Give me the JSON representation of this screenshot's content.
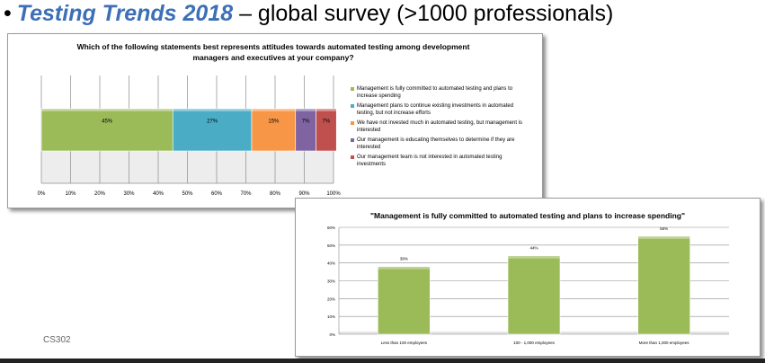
{
  "slide": {
    "bullet": "•",
    "title_emphasis": "Testing Trends 2018",
    "title_rest": " – global survey (>1000 professionals)",
    "footer_code": "CS302"
  },
  "chart_data": [
    {
      "type": "bar",
      "orientation": "horizontal-stacked-100",
      "title": "Which of the following statements best represents attitudes towards automated testing among development managers and executives at your company?",
      "xlim": [
        0,
        100
      ],
      "x_ticks": [
        "0%",
        "10%",
        "20%",
        "30%",
        "40%",
        "50%",
        "60%",
        "70%",
        "80%",
        "90%",
        "100%"
      ],
      "grid": true,
      "legend_position": "right",
      "series": [
        {
          "name": "Management is fully committed to automated testing and plans to increase spending",
          "value": 45,
          "label": "45%",
          "color": "#9bbb59"
        },
        {
          "name": "Management plans to continue existing investments in automated testing, but not increase efforts",
          "value": 27,
          "label": "27%",
          "color": "#4bacc6"
        },
        {
          "name": "We have not invested much in automated testing, but management is interested",
          "value": 15,
          "label": "15%",
          "color": "#f79646"
        },
        {
          "name": "Our management is educating themselves to determine if they are interested",
          "value": 7,
          "label": "7%",
          "color": "#8064a2"
        },
        {
          "name": "Our management team is not interested in automated testing investments",
          "value": 7,
          "label": "7%",
          "color": "#c0504d"
        }
      ]
    },
    {
      "type": "bar",
      "title": "\"Management is fully committed to automated testing and plans to increase spending\"",
      "categories": [
        "Less than 100 employees",
        "100 - 1,000 employees",
        "More than 1,000 employees"
      ],
      "values": [
        38,
        44,
        55
      ],
      "value_labels": [
        "38%",
        "44%",
        "55%"
      ],
      "ylim": [
        0,
        60
      ],
      "y_ticks": [
        "0%",
        "10%",
        "20%",
        "30%",
        "40%",
        "50%",
        "60%"
      ],
      "grid": true,
      "color": "#9bbb59"
    }
  ]
}
